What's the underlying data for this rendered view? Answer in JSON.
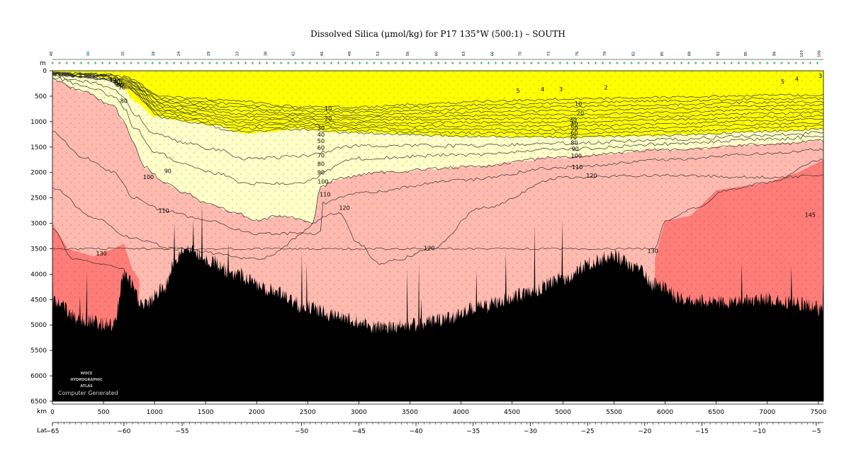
{
  "chart_data": {
    "type": "heatmap",
    "title": "Dissolved Silica (μmol/kg) for P17 135°W (500:1) – SOUTH",
    "depth_unit": "m",
    "distance_unit": "km",
    "lat_label": "Lat",
    "xlim": [
      0,
      7550
    ],
    "ylim": [
      6500,
      0
    ],
    "x_ticks": [
      0,
      500,
      1000,
      1500,
      2000,
      2500,
      3000,
      3500,
      4000,
      4500,
      5000,
      5500,
      6000,
      6500,
      7000,
      7500
    ],
    "y_ticks": [
      0,
      500,
      1000,
      1500,
      2000,
      2500,
      3000,
      3500,
      4000,
      4500,
      5000,
      5500,
      6000,
      6500
    ],
    "lat_ticks": [
      {
        "km": 0,
        "label": "−65"
      },
      {
        "km": 700,
        "label": "−60"
      },
      {
        "km": 1270,
        "label": "−55"
      },
      {
        "km": 2440,
        "label": "−50"
      },
      {
        "km": 3000,
        "label": "−45"
      },
      {
        "km": 3560,
        "label": "−40"
      },
      {
        "km": 4120,
        "label": "−35"
      },
      {
        "km": 4680,
        "label": "−30"
      },
      {
        "km": 5240,
        "label": "−25"
      },
      {
        "km": 5800,
        "label": "−20"
      },
      {
        "km": 6360,
        "label": "−15"
      },
      {
        "km": 6920,
        "label": "−10"
      },
      {
        "km": 7480,
        "label": "−5"
      }
    ],
    "station_labels": [
      {
        "km": 0,
        "label": "48"
      },
      {
        "km": 360,
        "label": "10"
      },
      {
        "km": 700,
        "label": "15"
      },
      {
        "km": 1000,
        "label": "18"
      },
      {
        "km": 1250,
        "label": "24"
      },
      {
        "km": 1540,
        "label": "29"
      },
      {
        "km": 1820,
        "label": "33"
      },
      {
        "km": 2100,
        "label": "38"
      },
      {
        "km": 2370,
        "label": "42"
      },
      {
        "km": 2650,
        "label": "46"
      },
      {
        "km": 2920,
        "label": "49"
      },
      {
        "km": 3200,
        "label": "53"
      },
      {
        "km": 3490,
        "label": "56"
      },
      {
        "km": 3770,
        "label": "60"
      },
      {
        "km": 4040,
        "label": "63"
      },
      {
        "km": 4320,
        "label": "66"
      },
      {
        "km": 4590,
        "label": "70"
      },
      {
        "km": 4870,
        "label": "73"
      },
      {
        "km": 5150,
        "label": "76"
      },
      {
        "km": 5420,
        "label": "79"
      },
      {
        "km": 5700,
        "label": "82"
      },
      {
        "km": 5980,
        "label": "85"
      },
      {
        "km": 6250,
        "label": "89"
      },
      {
        "km": 6530,
        "label": "92"
      },
      {
        "km": 6800,
        "label": "95"
      },
      {
        "km": 7080,
        "label": "99"
      },
      {
        "km": 7350,
        "label": "103"
      },
      {
        "km": 7520,
        "label": "106"
      }
    ],
    "contour_labels": [
      {
        "km": 590,
        "depth": 170,
        "value": "30"
      },
      {
        "km": 630,
        "depth": 210,
        "value": "40"
      },
      {
        "km": 650,
        "depth": 240,
        "value": "50"
      },
      {
        "km": 660,
        "depth": 280,
        "value": "60"
      },
      {
        "km": 680,
        "depth": 330,
        "value": "70"
      },
      {
        "km": 700,
        "depth": 590,
        "value": "80"
      },
      {
        "km": 4560,
        "depth": 390,
        "value": "5"
      },
      {
        "km": 4800,
        "depth": 360,
        "value": "4"
      },
      {
        "km": 4980,
        "depth": 360,
        "value": "3"
      },
      {
        "km": 5420,
        "depth": 330,
        "value": "2"
      },
      {
        "km": 7150,
        "depth": 210,
        "value": "5"
      },
      {
        "km": 7290,
        "depth": 160,
        "value": "4"
      },
      {
        "km": 7520,
        "depth": 100,
        "value": "3"
      },
      {
        "km": 2700,
        "depth": 740,
        "value": "10"
      },
      {
        "km": 5150,
        "depth": 650,
        "value": "10"
      },
      {
        "km": 2700,
        "depth": 940,
        "value": "20"
      },
      {
        "km": 5170,
        "depth": 830,
        "value": "20"
      },
      {
        "km": 2630,
        "depth": 1120,
        "value": "30"
      },
      {
        "km": 5100,
        "depth": 960,
        "value": "30"
      },
      {
        "km": 2630,
        "depth": 1250,
        "value": "40"
      },
      {
        "km": 5110,
        "depth": 1040,
        "value": "40"
      },
      {
        "km": 2630,
        "depth": 1380,
        "value": "50"
      },
      {
        "km": 5110,
        "depth": 1120,
        "value": "50"
      },
      {
        "km": 2630,
        "depth": 1510,
        "value": "60"
      },
      {
        "km": 5110,
        "depth": 1220,
        "value": "60"
      },
      {
        "km": 2630,
        "depth": 1660,
        "value": "70"
      },
      {
        "km": 5100,
        "depth": 1310,
        "value": "70"
      },
      {
        "km": 2630,
        "depth": 1830,
        "value": "80"
      },
      {
        "km": 5110,
        "depth": 1410,
        "value": "80"
      },
      {
        "km": 2630,
        "depth": 2000,
        "value": "90"
      },
      {
        "km": 5120,
        "depth": 1530,
        "value": "90"
      },
      {
        "km": 1130,
        "depth": 1970,
        "value": "90"
      },
      {
        "km": 2650,
        "depth": 2180,
        "value": "100"
      },
      {
        "km": 5130,
        "depth": 1670,
        "value": "100"
      },
      {
        "km": 940,
        "depth": 2090,
        "value": "100"
      },
      {
        "km": 2670,
        "depth": 2430,
        "value": "110"
      },
      {
        "km": 5140,
        "depth": 1890,
        "value": "110"
      },
      {
        "km": 1090,
        "depth": 2750,
        "value": "110"
      },
      {
        "km": 2860,
        "depth": 2690,
        "value": "120"
      },
      {
        "km": 5280,
        "depth": 2060,
        "value": "120"
      },
      {
        "km": 3690,
        "depth": 3490,
        "value": "120"
      },
      {
        "km": 480,
        "depth": 3590,
        "value": "130"
      },
      {
        "km": 5880,
        "depth": 3540,
        "value": "130"
      },
      {
        "km": 3220,
        "depth": 5020,
        "value": "130"
      },
      {
        "km": 7420,
        "depth": 2830,
        "value": "145"
      }
    ],
    "color_bands": [
      {
        "from": 0,
        "to": 70,
        "color": "#ffff00"
      },
      {
        "from": 70,
        "to": 100,
        "color": "#ffffc8"
      },
      {
        "from": 100,
        "to": 130,
        "color": "#ffbab0"
      },
      {
        "from": 130,
        "to": 150,
        "color": "#ff7d78"
      }
    ]
  },
  "watermark": {
    "line1": "WOCE",
    "line2": "HYDROGRAPHIC",
    "line3": "ATLAS",
    "credit": "Computer Generated"
  }
}
